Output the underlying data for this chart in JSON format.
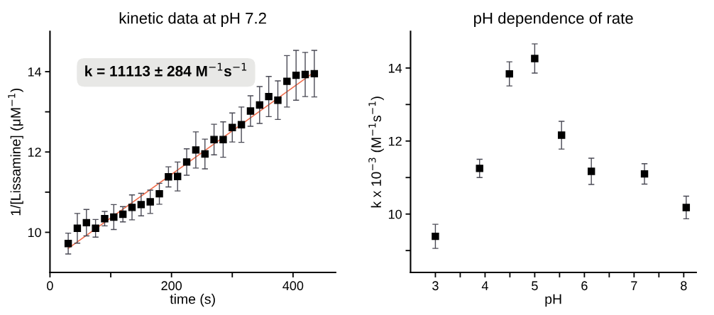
{
  "chart_data": [
    {
      "type": "scatter",
      "title": "kinetic data at pH 7.2",
      "xlabel": "time (s)",
      "ylabel": "1/[Lissamine] (μM$^{−1}$)",
      "xlim": [
        0,
        470
      ],
      "ylim": [
        9,
        15
      ],
      "xticks": [
        0,
        {
          "value": 100,
          "label": null
        },
        200,
        {
          "value": 300,
          "label": null
        },
        400
      ],
      "yticks": [
        10,
        {
          "value": 11,
          "label": null
        },
        12,
        {
          "value": 13,
          "label": null
        },
        14
      ],
      "grid": false,
      "legend": false,
      "marker": "square",
      "annotations": [
        "k = 11113 ± 284 M$^{−1}$s$^{−1}$"
      ],
      "series": [
        {
          "color": "#000000",
          "x": [
            30,
            45,
            60,
            75,
            90,
            105,
            120,
            135,
            150,
            165,
            180,
            195,
            210,
            225,
            240,
            255,
            270,
            285,
            300,
            315,
            330,
            345,
            360,
            375,
            390,
            405,
            420,
            435
          ],
          "values": [
            9.72,
            10.1,
            10.24,
            10.1,
            10.34,
            10.38,
            10.45,
            10.62,
            10.69,
            10.76,
            10.96,
            11.38,
            11.39,
            11.75,
            12.05,
            11.95,
            12.31,
            12.31,
            12.61,
            12.68,
            13.02,
            13.17,
            13.38,
            13.29,
            13.76,
            13.91,
            13.93,
            13.95
          ],
          "errors": [
            0.26,
            0.37,
            0.33,
            0.22,
            0.18,
            0.31,
            0.19,
            0.31,
            0.28,
            0.29,
            0.26,
            0.25,
            0.36,
            0.33,
            0.45,
            0.37,
            0.38,
            0.44,
            0.36,
            0.44,
            0.38,
            0.46,
            0.5,
            0.48,
            0.64,
            0.62,
            0.55,
            0.58
          ]
        },
        {
          "type": "line",
          "color": "#f07050",
          "x": [
            30,
            435
          ],
          "values": [
            9.6,
            13.99
          ],
          "line_style": "solid",
          "marker": "none"
        }
      ]
    },
    {
      "type": "scatter",
      "title": "pH dependence of rate",
      "xlabel": "pH",
      "ylabel": "k x 10$^{−3}$ (M$^{−1}$s$^{−1}$)",
      "xlim": [
        2.5,
        8.25
      ],
      "ylim": [
        8.4,
        15
      ],
      "xticks": [
        3,
        {
          "value": 3.5,
          "label": null
        },
        4,
        {
          "value": 4.5,
          "label": null
        },
        5,
        {
          "value": 5.5,
          "label": null
        },
        6,
        {
          "value": 6.5,
          "label": null
        },
        7,
        {
          "value": 7.5,
          "label": null
        },
        8
      ],
      "yticks": [
        {
          "value": 9,
          "label": null
        },
        10,
        {
          "value": 11,
          "label": null
        },
        12,
        {
          "value": 13,
          "label": null
        },
        14
      ],
      "grid": false,
      "legend": false,
      "marker": "square",
      "series": [
        {
          "color": "#000000",
          "x": [
            3.0,
            3.89,
            4.49,
            5.0,
            5.54,
            6.14,
            7.21,
            8.05
          ],
          "values": [
            9.39,
            11.25,
            13.84,
            14.26,
            12.16,
            11.17,
            11.1,
            10.18
          ],
          "errors": [
            0.33,
            0.25,
            0.33,
            0.4,
            0.38,
            0.36,
            0.28,
            0.31
          ]
        }
      ]
    }
  ]
}
